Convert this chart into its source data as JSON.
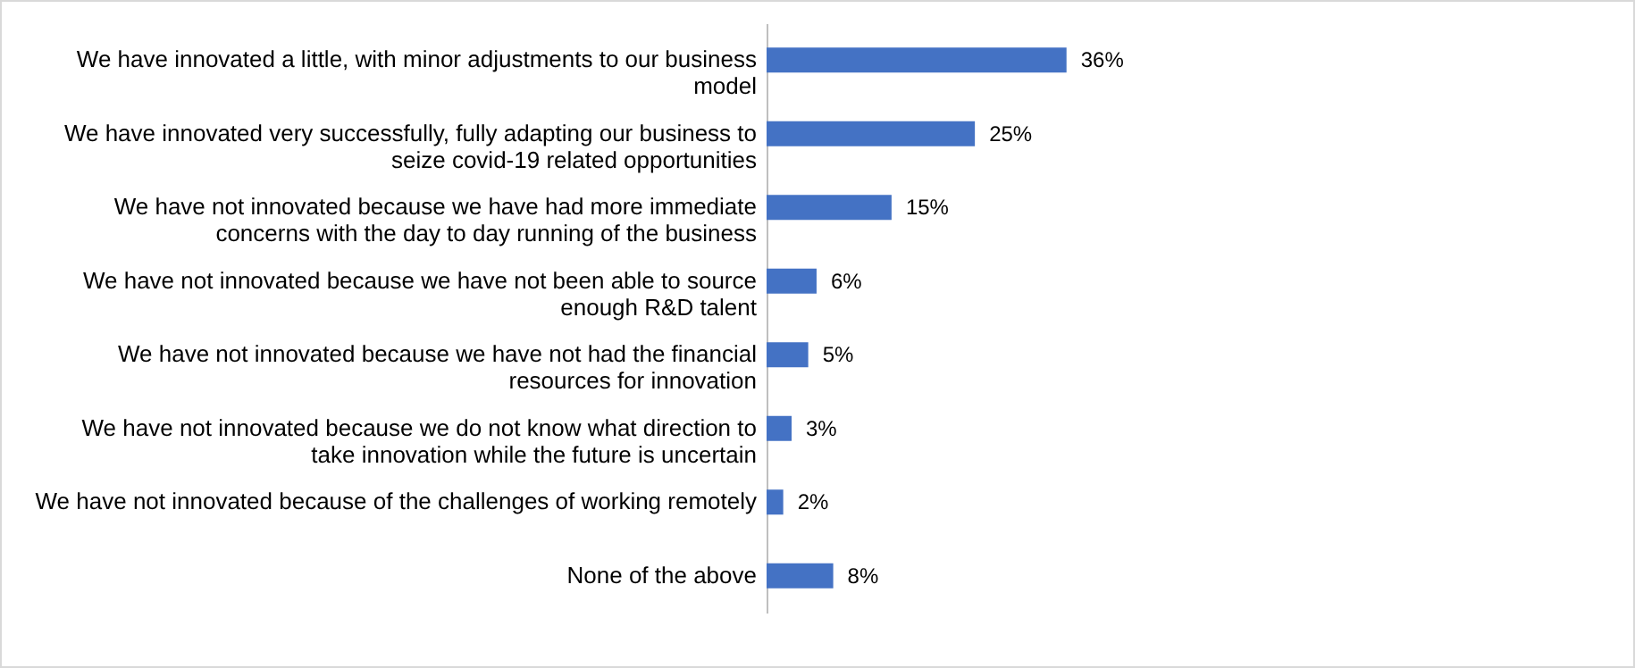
{
  "chart_data": {
    "type": "bar",
    "orientation": "horizontal",
    "categories": [
      "We have innovated a little, with minor adjustments to our business model",
      "We have innovated very successfully, fully adapting our business to seize covid-19 related opportunities",
      "We have not innovated because we have had more immediate concerns with the day to day running of the business",
      "We have not innovated because we have not been able to source enough R&D talent",
      "We have not innovated because we have not had the financial resources for innovation",
      "We have not innovated because we do not know what direction to take innovation while the future is uncertain",
      "We have not innovated because of the challenges of working remotely",
      "None of the above"
    ],
    "values": [
      36,
      25,
      15,
      6,
      5,
      3,
      2,
      8
    ],
    "value_labels": [
      "36%",
      "25%",
      "15%",
      "6%",
      "5%",
      "3%",
      "2%",
      "8%"
    ],
    "color": "#4472c4"
  }
}
